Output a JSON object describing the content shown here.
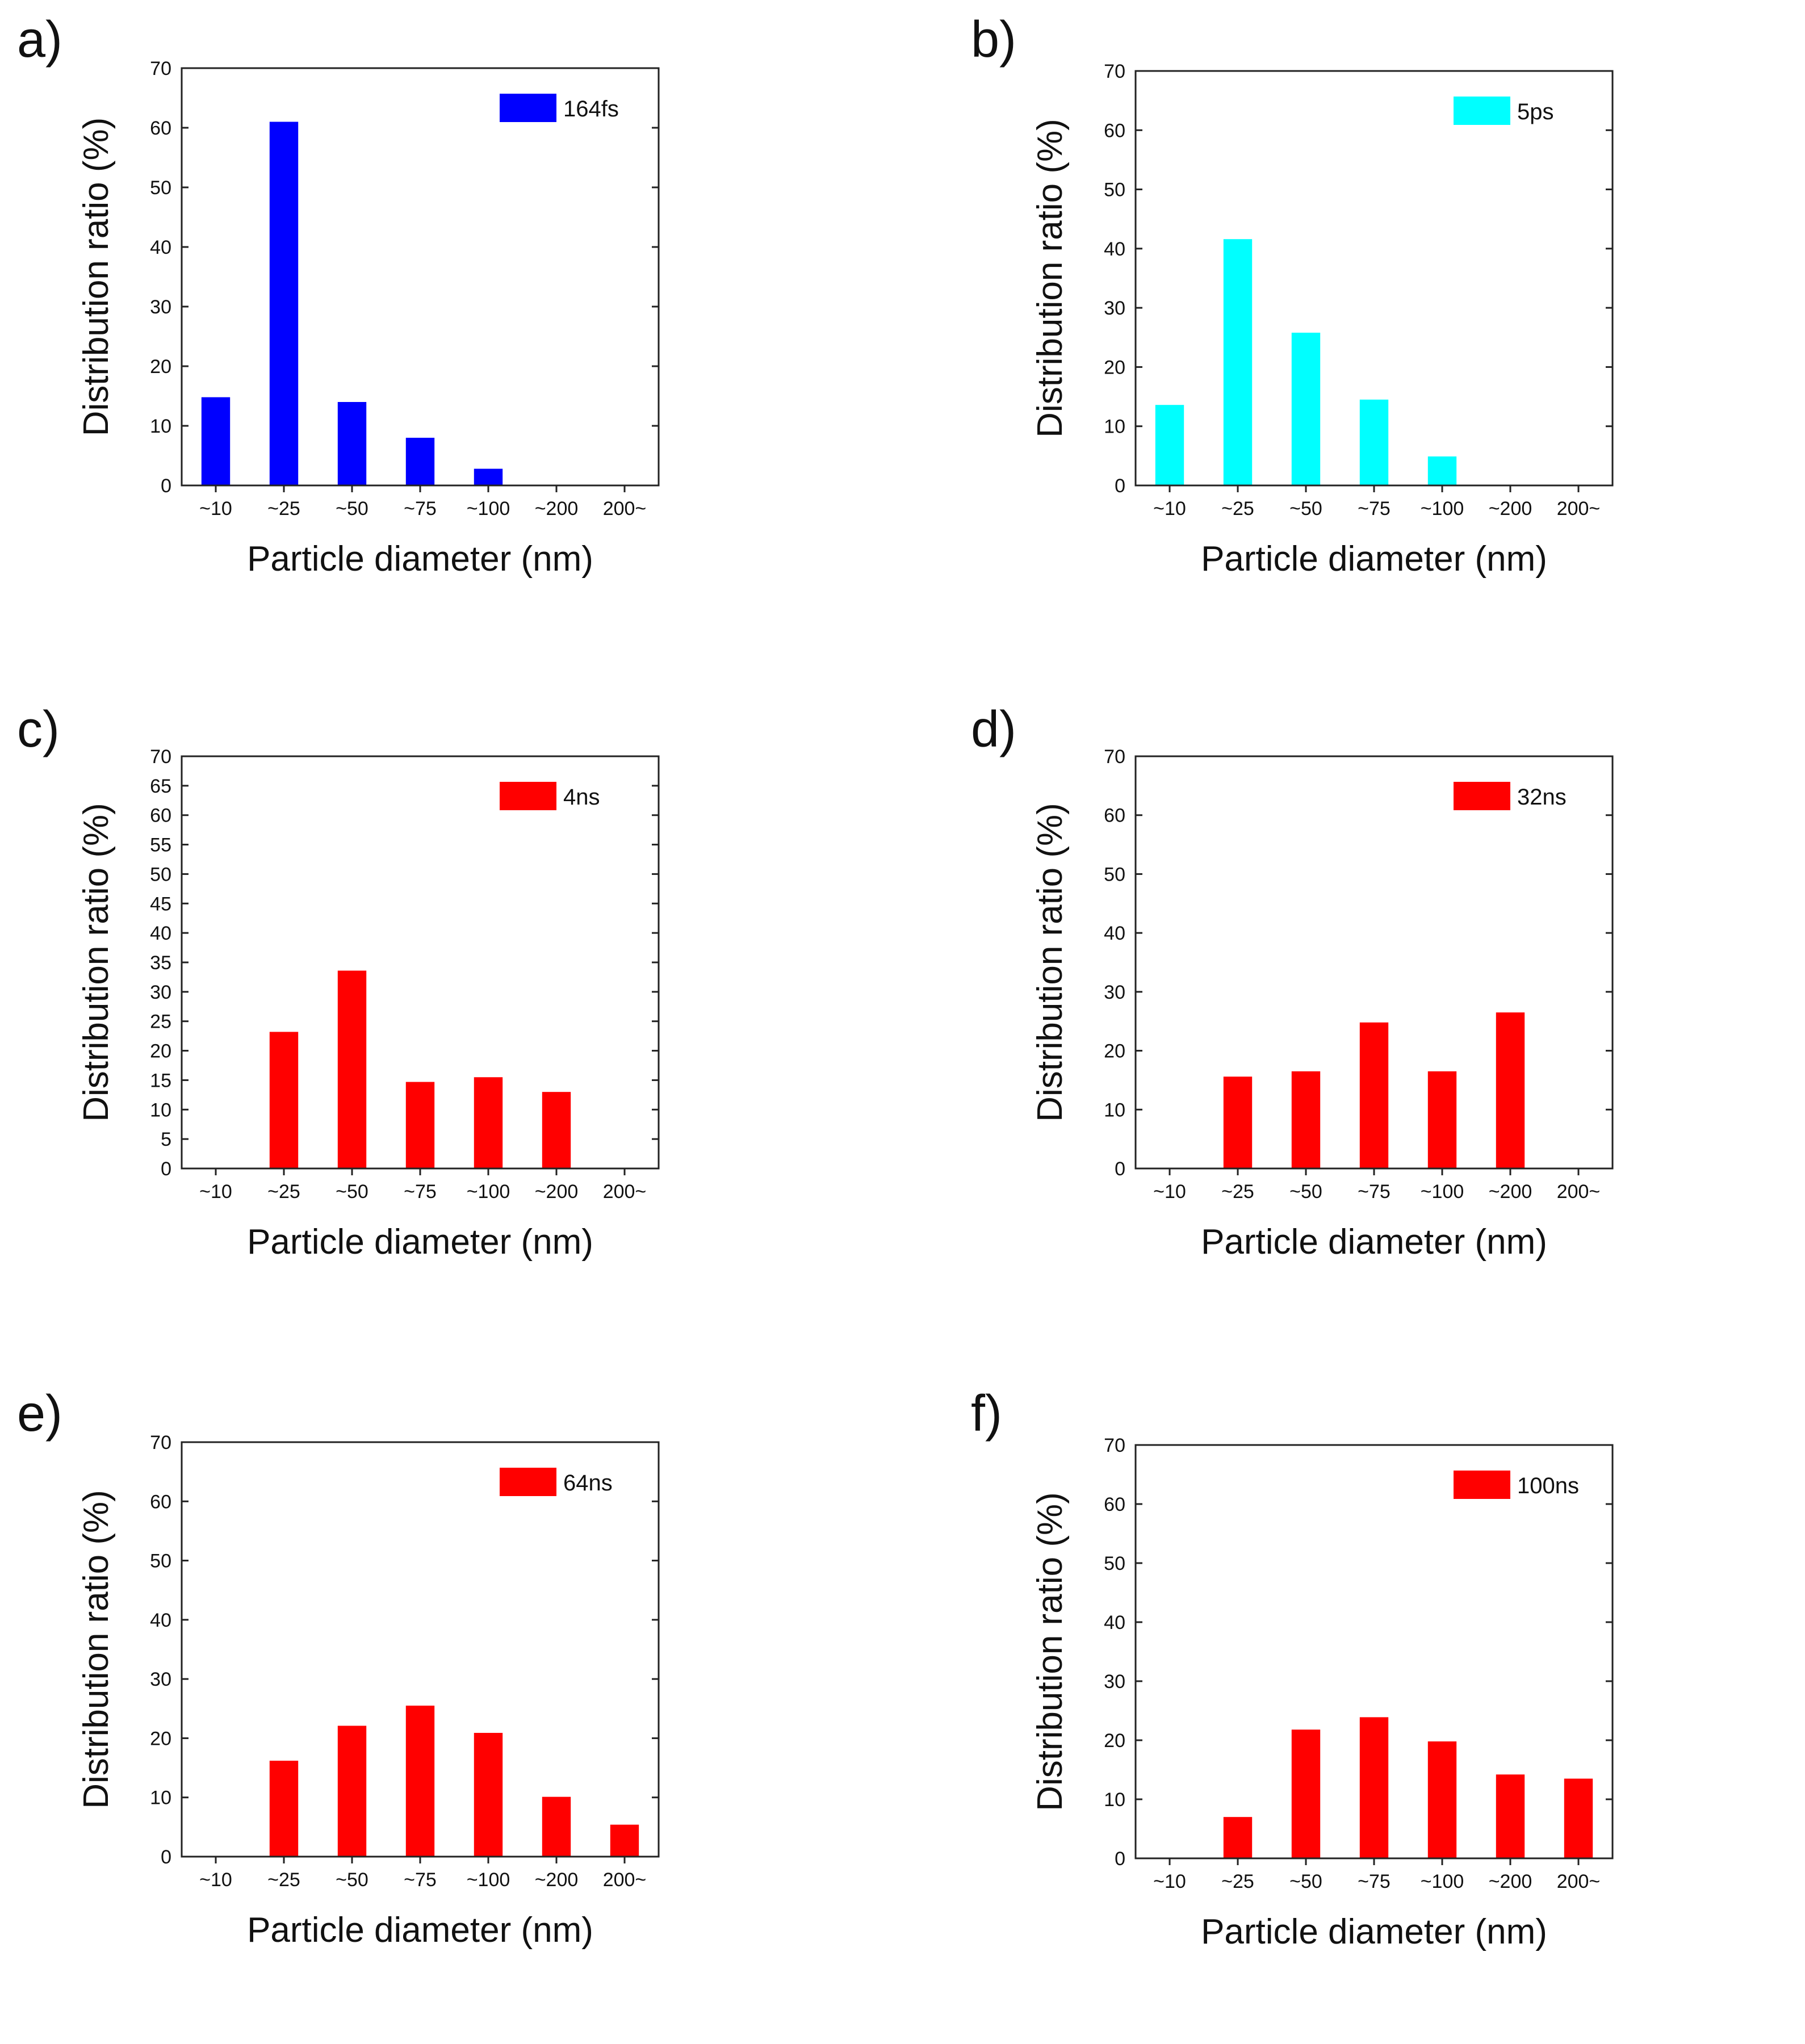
{
  "figure": {
    "panel_count": 6
  },
  "chart_data": [
    {
      "type": "bar",
      "panel_label": "a)",
      "legend": "164fs",
      "color": "#0000ff",
      "xlabel": "Particle diameter (nm)",
      "ylabel": "Distribution ratio (%)",
      "categories": [
        "~10",
        "~25",
        "~50",
        "~75",
        "~100",
        "~200",
        "200~"
      ],
      "values": [
        14.8,
        61.0,
        14.0,
        8.0,
        2.8,
        0,
        0
      ],
      "ylim": [
        0,
        70
      ],
      "ytick_step": 10,
      "grid": false,
      "legend_position": "top-right"
    },
    {
      "type": "bar",
      "panel_label": "b)",
      "legend": "5ps",
      "color": "#00ffff",
      "xlabel": "Particle diameter (nm)",
      "ylabel": "Distribution ratio (%)",
      "categories": [
        "~10",
        "~25",
        "~50",
        "~75",
        "~100",
        "~200",
        "200~"
      ],
      "values": [
        13.6,
        41.6,
        25.8,
        14.5,
        4.9,
        0,
        0
      ],
      "ylim": [
        0,
        70
      ],
      "ytick_step": 10,
      "grid": false,
      "legend_position": "top-right"
    },
    {
      "type": "bar",
      "panel_label": "c)",
      "legend": "4ns",
      "color": "#ff0000",
      "xlabel": "Particle diameter (nm)",
      "ylabel": "Distribution ratio (%)",
      "categories": [
        "~10",
        "~25",
        "~50",
        "~75",
        "~100",
        "~200",
        "200~"
      ],
      "values": [
        0,
        23.2,
        33.6,
        14.7,
        15.5,
        13.0,
        0
      ],
      "ylim": [
        0,
        70
      ],
      "ytick_step": 5,
      "grid": false,
      "legend_position": "top-right"
    },
    {
      "type": "bar",
      "panel_label": "d)",
      "legend": "32ns",
      "color": "#ff0000",
      "xlabel": "Particle diameter (nm)",
      "ylabel": "Distribution ratio (%)",
      "categories": [
        "~10",
        "~25",
        "~50",
        "~75",
        "~100",
        "~200",
        "200~"
      ],
      "values": [
        0,
        15.6,
        16.5,
        24.8,
        16.5,
        26.5,
        0
      ],
      "ylim": [
        0,
        70
      ],
      "ytick_step": 10,
      "grid": false,
      "legend_position": "top-right"
    },
    {
      "type": "bar",
      "panel_label": "e)",
      "legend": "64ns",
      "color": "#ff0000",
      "xlabel": "Particle diameter (nm)",
      "ylabel": "Distribution ratio (%)",
      "categories": [
        "~10",
        "~25",
        "~50",
        "~75",
        "~100",
        "~200",
        "200~"
      ],
      "values": [
        0,
        16.2,
        22.1,
        25.5,
        20.9,
        10.1,
        5.4
      ],
      "ylim": [
        0,
        70
      ],
      "ytick_step": 10,
      "grid": false,
      "legend_position": "top-right"
    },
    {
      "type": "bar",
      "panel_label": "f)",
      "legend": "100ns",
      "color": "#ff0000",
      "xlabel": "Particle diameter (nm)",
      "ylabel": "Distribution ratio (%)",
      "categories": [
        "~10",
        "~25",
        "~50",
        "~75",
        "~100",
        "~200",
        "200~"
      ],
      "values": [
        0,
        7.0,
        21.8,
        23.9,
        19.8,
        14.2,
        13.5
      ],
      "ylim": [
        0,
        70
      ],
      "ytick_step": 10,
      "grid": false,
      "legend_position": "top-right"
    }
  ]
}
